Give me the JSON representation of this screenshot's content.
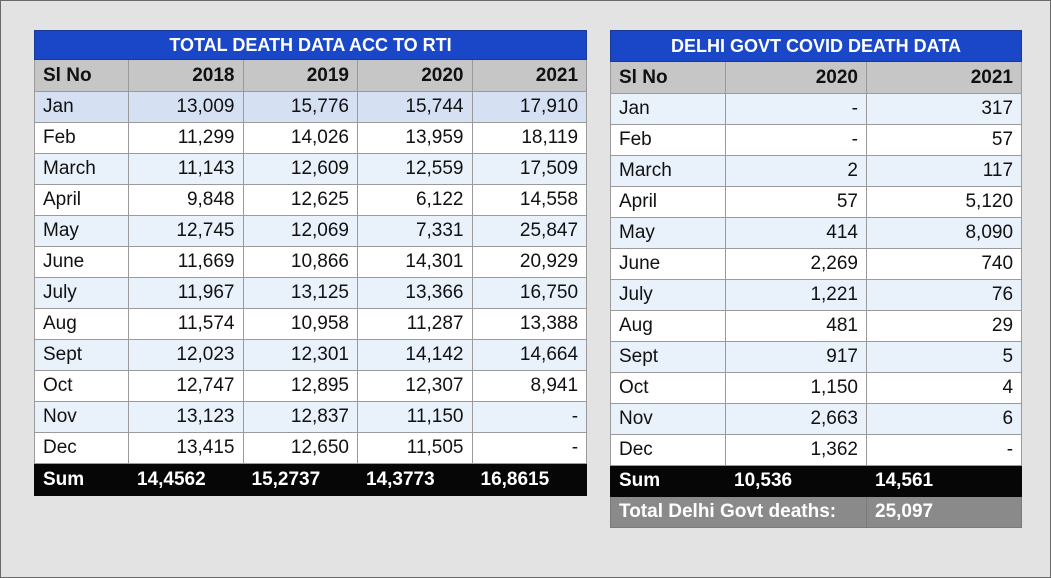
{
  "rti": {
    "title": "TOTAL DEATH DATA ACC TO RTI",
    "headers": [
      "Sl No",
      "2018",
      "2019",
      "2020",
      "2021"
    ],
    "rows": [
      [
        "Jan",
        "13,009",
        "15,776",
        "15,744",
        "17,910"
      ],
      [
        "Feb",
        "11,299",
        "14,026",
        "13,959",
        "18,119"
      ],
      [
        "March",
        "11,143",
        "12,609",
        "12,559",
        "17,509"
      ],
      [
        "April",
        "9,848",
        "12,625",
        "6,122",
        "14,558"
      ],
      [
        "May",
        "12,745",
        "12,069",
        "7,331",
        "25,847"
      ],
      [
        "June",
        "11,669",
        "10,866",
        "14,301",
        "20,929"
      ],
      [
        "July",
        "11,967",
        "13,125",
        "13,366",
        "16,750"
      ],
      [
        "Aug",
        "11,574",
        "10,958",
        "11,287",
        "13,388"
      ],
      [
        "Sept",
        "12,023",
        "12,301",
        "14,142",
        "14,664"
      ],
      [
        "Oct",
        "12,747",
        "12,895",
        "12,307",
        "8,941"
      ],
      [
        "Nov",
        "13,123",
        "12,837",
        "11,150",
        "-"
      ],
      [
        "Dec",
        "13,415",
        "12,650",
        "11,505",
        "-"
      ]
    ],
    "sum": [
      "Sum",
      "14,4562",
      "15,2737",
      "14,3773",
      "16,8615"
    ]
  },
  "delhi": {
    "title": "DELHI GOVT COVID DEATH DATA",
    "headers": [
      "Sl No",
      "2020",
      "2021"
    ],
    "rows": [
      [
        "Jan",
        "-",
        "317"
      ],
      [
        "Feb",
        "-",
        "57"
      ],
      [
        "March",
        "2",
        "117"
      ],
      [
        "April",
        "57",
        "5,120"
      ],
      [
        "May",
        "414",
        "8,090"
      ],
      [
        "June",
        "2,269",
        "740"
      ],
      [
        "July",
        "1,221",
        "76"
      ],
      [
        "Aug",
        "481",
        "29"
      ],
      [
        "Sept",
        "917",
        "5"
      ],
      [
        "Oct",
        "1,150",
        "4"
      ],
      [
        "Nov",
        "2,663",
        "6"
      ],
      [
        "Dec",
        "1,362",
        "-"
      ]
    ],
    "sum": [
      "Sum",
      "10,536",
      "14,561"
    ],
    "total_label": "Total Delhi Govt deaths:",
    "total_value": "25,097"
  }
}
